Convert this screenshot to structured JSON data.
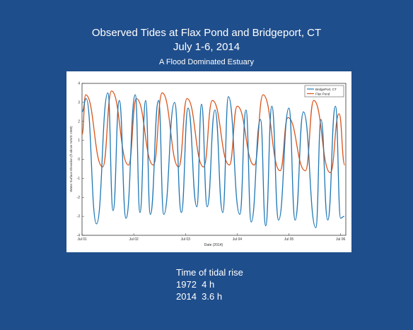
{
  "slide": {
    "title_line1": "Observed Tides at Flax Pond and Bridgeport, CT",
    "title_line2": "July 1-6, 2014",
    "subtitle": "A Flood Dominated Estuary",
    "notes": [
      "Time of tidal rise",
      "1972  4 h",
      "2014  3.6 h"
    ]
  },
  "chart_data": {
    "type": "line",
    "title": "",
    "xlabel": "Date (2014)",
    "ylabel": "Water Surface Elevation (ft above NAVD 1988)",
    "ylim": [
      -4,
      4
    ],
    "xlim": [
      0,
      5.1
    ],
    "x_ticks": [
      0,
      1,
      2,
      3,
      4,
      5
    ],
    "x_tick_labels": [
      "Jul 01",
      "Jul 02",
      "Jul 03",
      "Jul 04",
      "Jul 05",
      "Jul 06"
    ],
    "y_ticks": [
      -4,
      -3,
      -2,
      -1,
      0,
      1,
      2,
      3,
      4
    ],
    "y_tick_labels": [
      "-4",
      "-3",
      "-2",
      "-1",
      "0",
      "1",
      "2",
      "3",
      "4"
    ],
    "legend_position": "top-right",
    "grid": false,
    "series": [
      {
        "name": "BridgePort, CT",
        "color": "#1f77b4",
        "x": [
          0,
          0.08,
          0.28,
          0.5,
          0.6,
          0.72,
          0.85,
          1.03,
          1.12,
          1.23,
          1.32,
          1.48,
          1.58,
          1.79,
          1.92,
          2.05,
          2.22,
          2.31,
          2.42,
          2.57,
          2.72,
          2.83,
          3.05,
          3.17,
          3.27,
          3.45,
          3.55,
          3.67,
          3.8,
          4.0,
          4.12,
          4.28,
          4.52,
          4.62,
          4.75,
          4.9,
          5.0,
          5.07
        ],
        "y": [
          2.5,
          3.2,
          -3.4,
          3.5,
          -2.7,
          3.1,
          -3.1,
          3.4,
          -2.8,
          3.1,
          -2.9,
          3.1,
          -2.9,
          3.0,
          -2.8,
          2.7,
          -2.5,
          2.9,
          -2.5,
          2.6,
          -2.8,
          3.3,
          -2.9,
          2.6,
          -3.3,
          2.1,
          -3.5,
          2.8,
          -3.2,
          2.7,
          -3.2,
          2.5,
          -3.6,
          2.1,
          -3.2,
          2.8,
          -3.1,
          -3.0
        ]
      },
      {
        "name": "Flax Pond",
        "color": "#d95319",
        "x": [
          0,
          0.07,
          0.4,
          0.57,
          0.9,
          1.05,
          1.38,
          1.55,
          1.87,
          2.03,
          2.35,
          2.52,
          2.85,
          3.0,
          3.33,
          3.5,
          3.83,
          3.98,
          4.32,
          4.48,
          4.8,
          4.97,
          5.08
        ],
        "y": [
          1.3,
          3.4,
          -0.4,
          3.6,
          -0.3,
          3.2,
          -0.3,
          3.5,
          -0.4,
          3.2,
          -0.4,
          3.1,
          -0.3,
          2.8,
          -0.3,
          3.4,
          -0.6,
          2.2,
          -0.6,
          3.1,
          -0.7,
          2.4,
          -0.3
        ]
      }
    ]
  }
}
